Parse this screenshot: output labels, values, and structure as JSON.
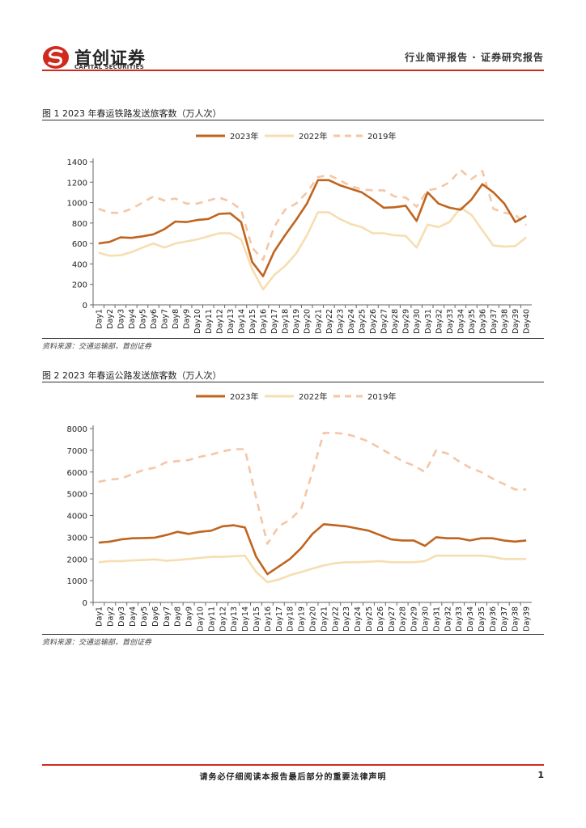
{
  "header": {
    "company_cn": "首创证券",
    "company_en": "CAPITAL SECURITIES",
    "report_type": "行业简评报告 · 证券研究报告",
    "brand_color": "#d02a1f"
  },
  "figures": [
    {
      "caption": "图 1 2023 年春运铁路发送旅客数（万人次）",
      "source": "资料来源：交通运输部，首创证券"
    },
    {
      "caption": "图 2 2023 年春运公路发送旅客数（万人次）",
      "source": "资料来源：交通运输部，首创证券"
    }
  ],
  "chart_data": [
    {
      "type": "line",
      "title": "2023 年春运铁路发送旅客数（万人次）",
      "xlabel": "",
      "ylabel": "",
      "ylim": [
        0,
        1400
      ],
      "yticks": [
        0,
        200,
        400,
        600,
        800,
        1000,
        1200,
        1400
      ],
      "categories": [
        "Day1",
        "Day2",
        "Day3",
        "Day4",
        "Day5",
        "Day6",
        "Day7",
        "Day8",
        "Day9",
        "Day10",
        "Day11",
        "Day12",
        "Day13",
        "Day14",
        "Day15",
        "Day16",
        "Day17",
        "Day18",
        "Day19",
        "Day20",
        "Day21",
        "Day22",
        "Day23",
        "Day24",
        "Day25",
        "Day26",
        "Day27",
        "Day28",
        "Day29",
        "Day30",
        "Day31",
        "Day32",
        "Day33",
        "Day34",
        "Day35",
        "Day36",
        "Day37",
        "Day38",
        "Day39",
        "Day40"
      ],
      "legend_position": "top",
      "series": [
        {
          "name": "2023年",
          "color": "#c0641e",
          "style": "solid",
          "values": [
            600,
            615,
            660,
            655,
            670,
            690,
            740,
            815,
            810,
            830,
            840,
            890,
            895,
            810,
            420,
            280,
            520,
            680,
            830,
            990,
            1220,
            1220,
            1170,
            1135,
            1100,
            1030,
            950,
            955,
            970,
            820,
            1100,
            990,
            950,
            930,
            1030,
            1180,
            1100,
            990,
            810,
            870
          ]
        },
        {
          "name": "2022年",
          "color": "#f6deb0",
          "style": "solid",
          "values": [
            510,
            480,
            485,
            515,
            560,
            600,
            560,
            600,
            620,
            640,
            670,
            700,
            700,
            640,
            350,
            150,
            290,
            380,
            500,
            680,
            905,
            905,
            840,
            790,
            760,
            700,
            700,
            680,
            675,
            560,
            785,
            760,
            810,
            950,
            880,
            730,
            580,
            570,
            575,
            660
          ]
        },
        {
          "name": "2019年",
          "color": "#f4c6a6",
          "style": "dashed",
          "values": [
            940,
            900,
            900,
            940,
            1000,
            1060,
            1020,
            1040,
            990,
            990,
            1020,
            1050,
            1010,
            930,
            560,
            440,
            760,
            930,
            990,
            1100,
            1250,
            1270,
            1220,
            1160,
            1130,
            1120,
            1120,
            1060,
            1050,
            960,
            1120,
            1140,
            1200,
            1320,
            1230,
            1310,
            940,
            900,
            880,
            780
          ]
        }
      ]
    },
    {
      "type": "line",
      "title": "2023 年春运公路发送旅客数（万人次）",
      "xlabel": "",
      "ylabel": "",
      "ylim": [
        0,
        8000
      ],
      "yticks": [
        0,
        1000,
        2000,
        3000,
        4000,
        5000,
        6000,
        7000,
        8000
      ],
      "categories": [
        "Day1",
        "Day2",
        "Day3",
        "Day4",
        "Day5",
        "Day6",
        "Day7",
        "Day8",
        "Day9",
        "Day10",
        "Day11",
        "Day12",
        "Day13",
        "Day14",
        "Day15",
        "Day16",
        "Day17",
        "Day18",
        "Day19",
        "Day20",
        "Day21",
        "Day22",
        "Day23",
        "Day24",
        "Day25",
        "Day26",
        "Day27",
        "Day28",
        "Day29",
        "Day30",
        "Day31",
        "Day32",
        "Day33",
        "Day34",
        "Day35",
        "Day36",
        "Day37",
        "Day38",
        "Day39"
      ],
      "legend_position": "top",
      "series": [
        {
          "name": "2023年",
          "color": "#c0641e",
          "style": "solid",
          "values": [
            2750,
            2800,
            2900,
            2950,
            2960,
            2980,
            3100,
            3250,
            3150,
            3250,
            3300,
            3500,
            3550,
            3450,
            2100,
            1300,
            1650,
            2000,
            2500,
            3150,
            3600,
            3550,
            3500,
            3400,
            3300,
            3100,
            2900,
            2850,
            2850,
            2600,
            3000,
            2950,
            2950,
            2850,
            2950,
            2950,
            2850,
            2800,
            2850
          ]
        },
        {
          "name": "2022年",
          "color": "#f6deb0",
          "style": "solid",
          "values": [
            1850,
            1900,
            1900,
            1930,
            1950,
            1980,
            1920,
            1950,
            2000,
            2050,
            2100,
            2100,
            2120,
            2150,
            1400,
            930,
            1050,
            1250,
            1400,
            1550,
            1700,
            1800,
            1850,
            1850,
            1870,
            1900,
            1850,
            1850,
            1850,
            1900,
            2150,
            2150,
            2150,
            2150,
            2150,
            2100,
            2000,
            2000,
            2000
          ]
        },
        {
          "name": "2019年",
          "color": "#f4c6a6",
          "style": "dashed",
          "values": [
            5550,
            5650,
            5700,
            5900,
            6100,
            6200,
            6450,
            6500,
            6550,
            6700,
            6800,
            6950,
            7050,
            7050,
            4800,
            2700,
            3500,
            3800,
            4300,
            6000,
            7800,
            7800,
            7750,
            7600,
            7400,
            7100,
            6800,
            6500,
            6300,
            6000,
            7000,
            6850,
            6500,
            6200,
            6000,
            5700,
            5450,
            5200,
            5200
          ]
        }
      ]
    }
  ],
  "footer": {
    "disclaimer": "请务必仔细阅读本报告最后部分的重要法律声明",
    "page_number": "1"
  }
}
